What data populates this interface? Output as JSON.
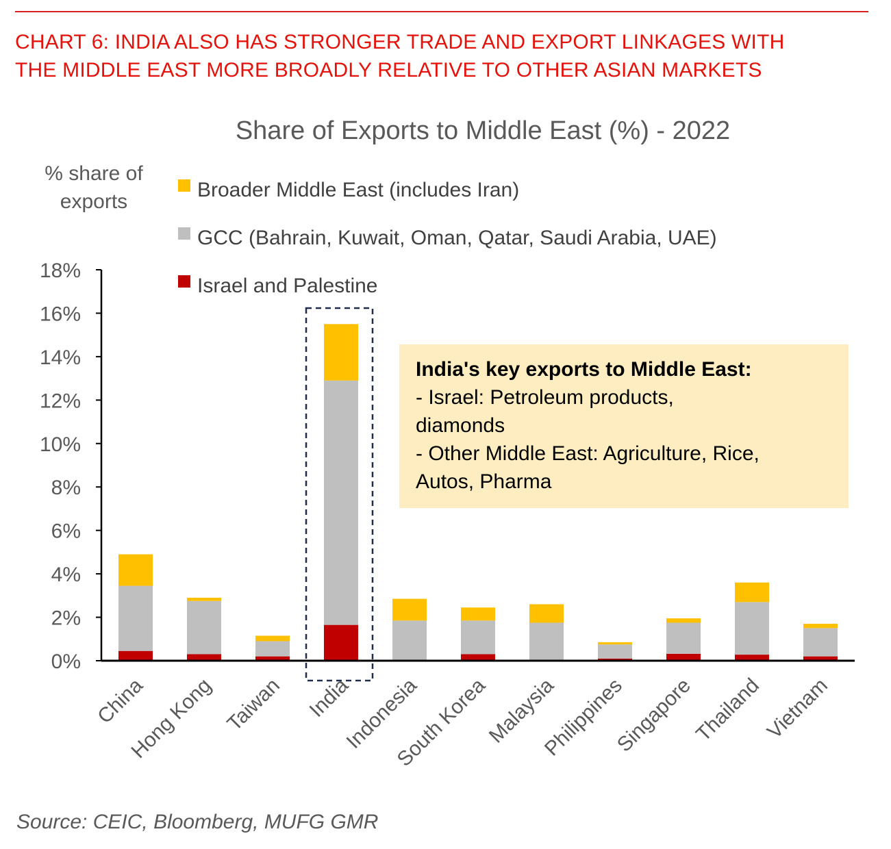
{
  "heading": {
    "line1": "CHART 6: INDIA ALSO HAS STRONGER TRADE AND EXPORT LINKAGES WITH",
    "line2": "THE MIDDLE EAST MORE BROADLY RELATIVE TO OTHER ASIAN MARKETS"
  },
  "source": "Source: CEIC, Bloomberg, MUFG GMR",
  "annotation": {
    "title": "India's key exports to Middle East:",
    "lines": [
      "- Israel: Petroleum products,",
      "diamonds",
      "- Other Middle East: Agriculture, Rice,",
      "Autos, Pharma"
    ]
  },
  "colors": {
    "heading": "#e3120b",
    "broader": "#ffc000",
    "gcc": "#bfbfbf",
    "israel": "#c00000",
    "highlight_box": "#1f2d4a",
    "annotation_bg": "#fdedc0"
  },
  "chart_data": {
    "type": "bar",
    "stacked": true,
    "title": "Share of Exports to Middle East (%) - 2022",
    "ylabel_lines": [
      "% share of",
      "exports"
    ],
    "ylim": [
      0,
      18
    ],
    "yticks": [
      0,
      2,
      4,
      6,
      8,
      10,
      12,
      14,
      16,
      18
    ],
    "ytick_labels": [
      "0%",
      "2%",
      "4%",
      "6%",
      "8%",
      "10%",
      "12%",
      "14%",
      "16%",
      "18%"
    ],
    "grid": false,
    "legend_position": "top-left",
    "highlight_category": "India",
    "categories": [
      "China",
      "Hong Kong",
      "Taiwan",
      "India",
      "Indonesia",
      "South Korea",
      "Malaysia",
      "Philippines",
      "Singapore",
      "Thailand",
      "Vietnam"
    ],
    "series": [
      {
        "name": "Israel and Palestine",
        "color": "#c00000",
        "values": [
          0.45,
          0.3,
          0.2,
          1.65,
          0.05,
          0.3,
          0.05,
          0.1,
          0.32,
          0.28,
          0.2
        ]
      },
      {
        "name": "GCC (Bahrain, Kuwait, Oman, Qatar, Saudi Arabia, UAE)",
        "color": "#bfbfbf",
        "values": [
          3.0,
          2.45,
          0.7,
          11.25,
          1.8,
          1.55,
          1.7,
          0.65,
          1.43,
          2.42,
          1.3
        ]
      },
      {
        "name": "Broader Middle East (includes Iran)",
        "color": "#ffc000",
        "values": [
          1.45,
          0.15,
          0.25,
          2.6,
          1.0,
          0.6,
          0.85,
          0.1,
          0.2,
          0.9,
          0.2
        ]
      }
    ],
    "legend_order": [
      "Broader Middle East (includes Iran)",
      "GCC (Bahrain, Kuwait, Oman, Qatar, Saudi Arabia, UAE)",
      "Israel and Palestine"
    ]
  }
}
